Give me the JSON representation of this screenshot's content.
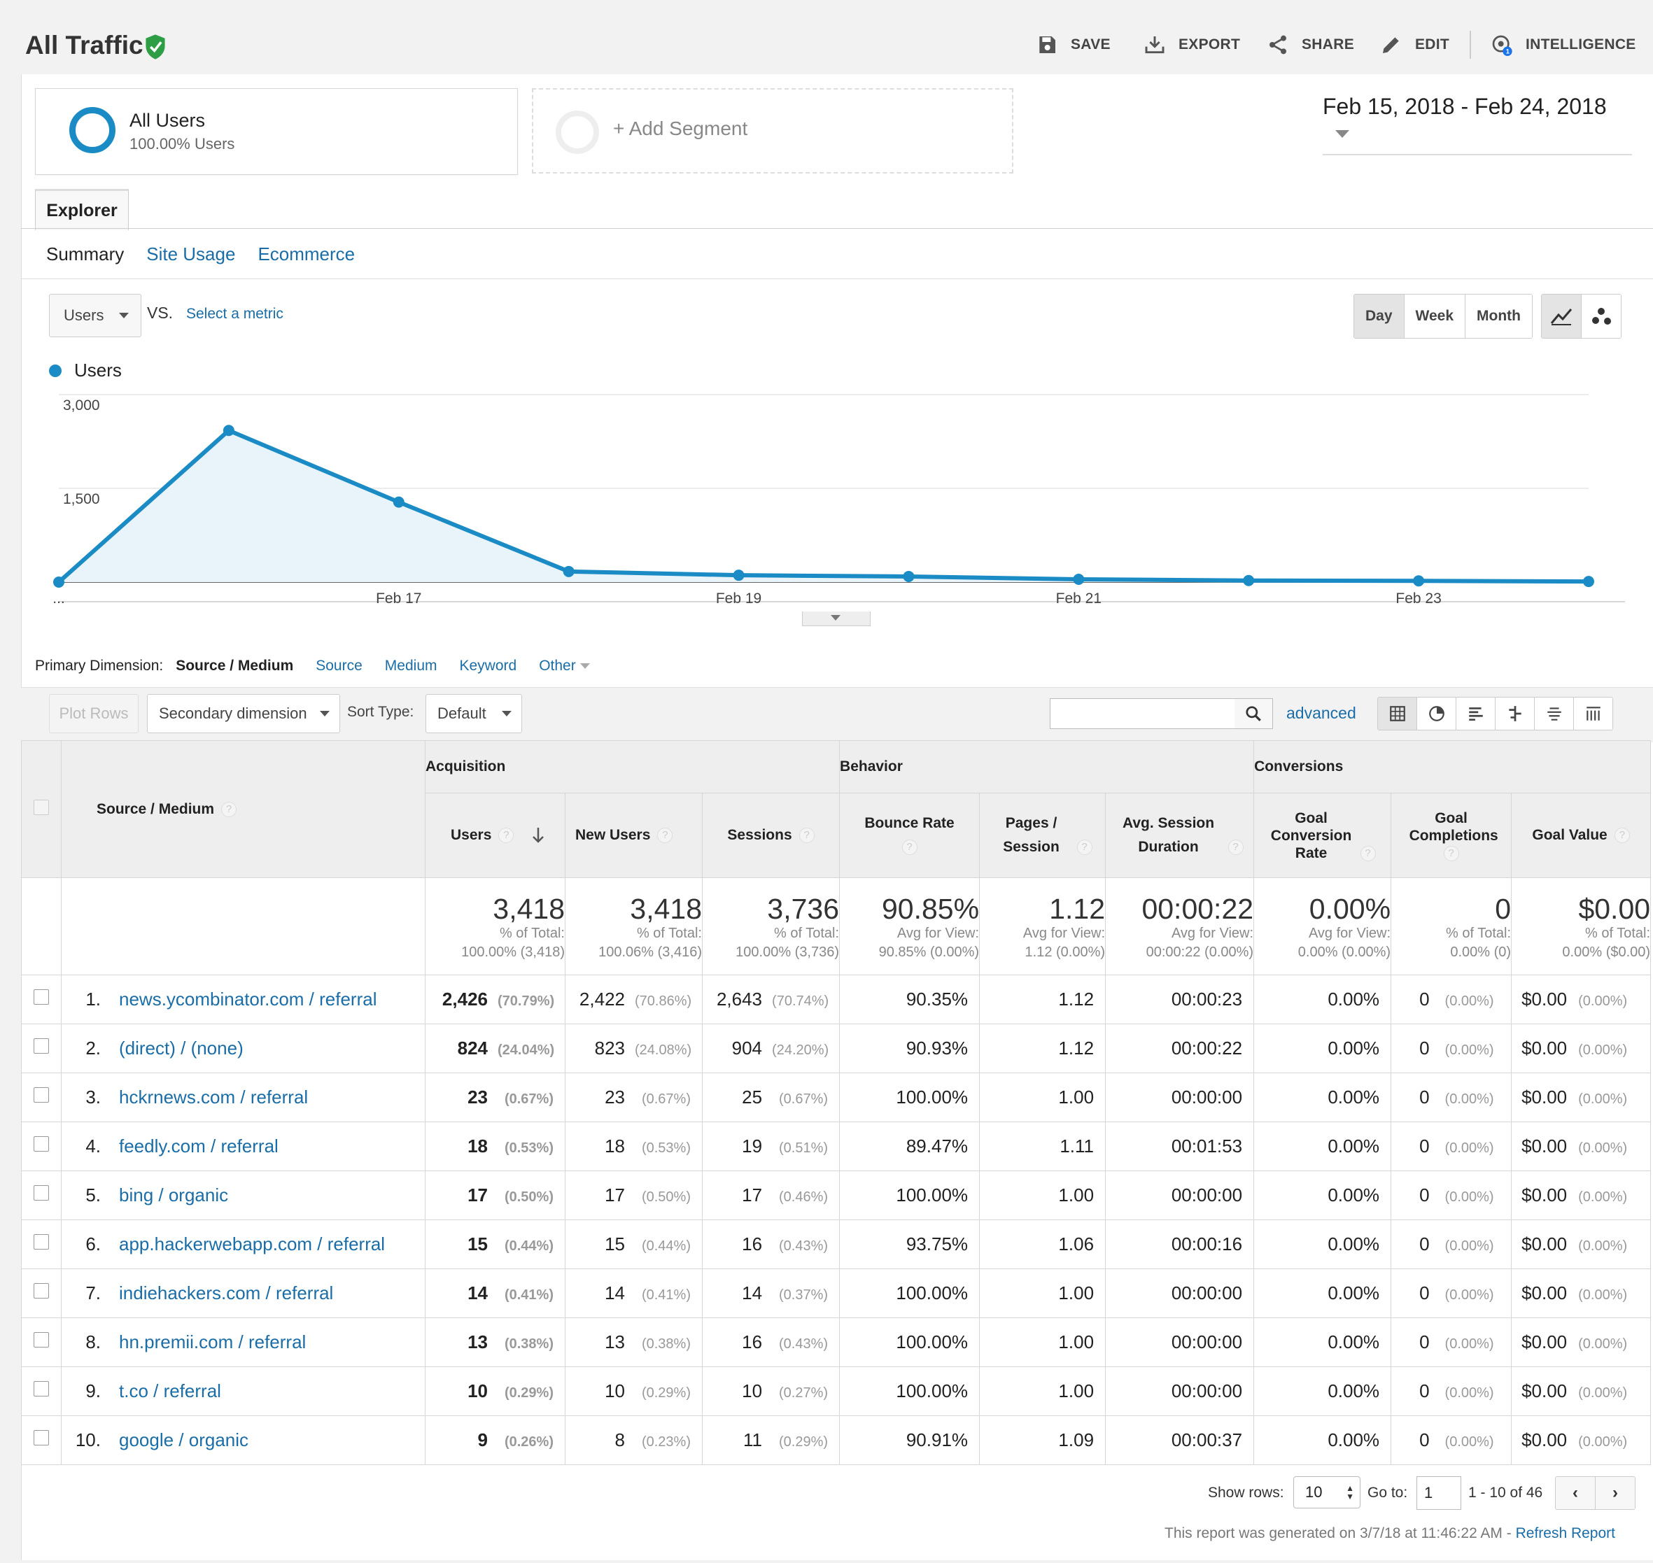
{
  "header": {
    "title": "All Traffic",
    "actions": [
      {
        "label": "SAVE",
        "icon": "save-icon"
      },
      {
        "label": "EXPORT",
        "icon": "export-icon"
      },
      {
        "label": "SHARE",
        "icon": "share-icon"
      },
      {
        "label": "EDIT",
        "icon": "edit-icon"
      },
      {
        "label": "INTELLIGENCE",
        "icon": "intelligence-icon",
        "badge": "1"
      }
    ]
  },
  "segments": {
    "active": {
      "name": "All Users",
      "detail": "100.00% Users"
    },
    "add_label": "+ Add Segment"
  },
  "date_range": "Feb 15, 2018 - Feb 24, 2018",
  "tabs": {
    "main": "Explorer",
    "sub": [
      "Summary",
      "Site Usage",
      "Ecommerce"
    ],
    "active_sub": "Summary"
  },
  "chart_controls": {
    "metric": "Users",
    "vs": "VS.",
    "select_metric": "Select a metric",
    "periods": [
      "Day",
      "Week",
      "Month"
    ],
    "active_period": "Day"
  },
  "chart_data": {
    "type": "area",
    "series": [
      {
        "name": "Users",
        "values": [
          0,
          2426,
          1280,
          170,
          110,
          90,
          45,
          25,
          20,
          10
        ]
      }
    ],
    "x": [
      "Feb 15",
      "Feb 16",
      "Feb 17",
      "Feb 18",
      "Feb 19",
      "Feb 20",
      "Feb 21",
      "Feb 22",
      "Feb 23",
      "Feb 24"
    ],
    "tick_labels": [
      "...",
      "Feb 17",
      "Feb 19",
      "Feb 21",
      "Feb 23"
    ],
    "y_ticks": [
      "3,000",
      "1,500"
    ],
    "ylim": [
      0,
      3000
    ],
    "color": "#1a8bc4",
    "grid": true,
    "legend": "top-left"
  },
  "primary_dimension": {
    "label": "Primary Dimension:",
    "active": "Source / Medium",
    "options": [
      "Source",
      "Medium",
      "Keyword"
    ],
    "other": "Other"
  },
  "table_toolbar": {
    "plot_rows": "Plot Rows",
    "secondary_dimension": "Secondary dimension",
    "sort_type_label": "Sort Type:",
    "sort_type": "Default",
    "advanced": "advanced"
  },
  "table": {
    "groups": [
      "Acquisition",
      "Behavior",
      "Conversions"
    ],
    "dimension_header": "Source / Medium",
    "columns": [
      {
        "label": "Users"
      },
      {
        "label": "New Users"
      },
      {
        "label": "Sessions"
      },
      {
        "label": "Bounce Rate"
      },
      {
        "label": "Pages / Session"
      },
      {
        "label": "Avg. Session Duration"
      },
      {
        "label": "Goal Conversion Rate"
      },
      {
        "label": "Goal Completions"
      },
      {
        "label": "Goal Value"
      }
    ],
    "totals": [
      {
        "value": "3,418",
        "l1": "% of Total:",
        "l2": "100.00% (3,418)"
      },
      {
        "value": "3,418",
        "l1": "% of Total:",
        "l2": "100.06% (3,416)"
      },
      {
        "value": "3,736",
        "l1": "% of Total:",
        "l2": "100.00% (3,736)"
      },
      {
        "value": "90.85%",
        "l1": "Avg for View:",
        "l2": "90.85% (0.00%)"
      },
      {
        "value": "1.12",
        "l1": "Avg for View:",
        "l2": "1.12 (0.00%)"
      },
      {
        "value": "00:00:22",
        "l1": "Avg for View:",
        "l2": "00:00:22 (0.00%)"
      },
      {
        "value": "0.00%",
        "l1": "Avg for View:",
        "l2": "0.00% (0.00%)"
      },
      {
        "value": "0",
        "l1": "% of Total:",
        "l2": "0.00% (0)"
      },
      {
        "value": "$0.00",
        "l1": "% of Total:",
        "l2": "0.00% ($0.00)"
      }
    ],
    "rows": [
      {
        "n": "1.",
        "source": "news.ycombinator.com / referral",
        "users": "2,426",
        "users_pct": "(70.79%)",
        "new_users": "2,422",
        "new_users_pct": "(70.86%)",
        "sessions": "2,643",
        "sessions_pct": "(70.74%)",
        "bounce": "90.35%",
        "pages": "1.12",
        "duration": "00:00:23",
        "conv": "0.00%",
        "goal": "0",
        "goal_pct": "(0.00%)",
        "value": "$0.00",
        "value_pct": "(0.00%)"
      },
      {
        "n": "2.",
        "source": "(direct) / (none)",
        "users": "824",
        "users_pct": "(24.04%)",
        "new_users": "823",
        "new_users_pct": "(24.08%)",
        "sessions": "904",
        "sessions_pct": "(24.20%)",
        "bounce": "90.93%",
        "pages": "1.12",
        "duration": "00:00:22",
        "conv": "0.00%",
        "goal": "0",
        "goal_pct": "(0.00%)",
        "value": "$0.00",
        "value_pct": "(0.00%)"
      },
      {
        "n": "3.",
        "source": "hckrnews.com / referral",
        "users": "23",
        "users_pct": "(0.67%)",
        "new_users": "23",
        "new_users_pct": "(0.67%)",
        "sessions": "25",
        "sessions_pct": "(0.67%)",
        "bounce": "100.00%",
        "pages": "1.00",
        "duration": "00:00:00",
        "conv": "0.00%",
        "goal": "0",
        "goal_pct": "(0.00%)",
        "value": "$0.00",
        "value_pct": "(0.00%)"
      },
      {
        "n": "4.",
        "source": "feedly.com / referral",
        "users": "18",
        "users_pct": "(0.53%)",
        "new_users": "18",
        "new_users_pct": "(0.53%)",
        "sessions": "19",
        "sessions_pct": "(0.51%)",
        "bounce": "89.47%",
        "pages": "1.11",
        "duration": "00:01:53",
        "conv": "0.00%",
        "goal": "0",
        "goal_pct": "(0.00%)",
        "value": "$0.00",
        "value_pct": "(0.00%)"
      },
      {
        "n": "5.",
        "source": "bing / organic",
        "users": "17",
        "users_pct": "(0.50%)",
        "new_users": "17",
        "new_users_pct": "(0.50%)",
        "sessions": "17",
        "sessions_pct": "(0.46%)",
        "bounce": "100.00%",
        "pages": "1.00",
        "duration": "00:00:00",
        "conv": "0.00%",
        "goal": "0",
        "goal_pct": "(0.00%)",
        "value": "$0.00",
        "value_pct": "(0.00%)"
      },
      {
        "n": "6.",
        "source": "app.hackerwebapp.com / referral",
        "users": "15",
        "users_pct": "(0.44%)",
        "new_users": "15",
        "new_users_pct": "(0.44%)",
        "sessions": "16",
        "sessions_pct": "(0.43%)",
        "bounce": "93.75%",
        "pages": "1.06",
        "duration": "00:00:16",
        "conv": "0.00%",
        "goal": "0",
        "goal_pct": "(0.00%)",
        "value": "$0.00",
        "value_pct": "(0.00%)"
      },
      {
        "n": "7.",
        "source": "indiehackers.com / referral",
        "users": "14",
        "users_pct": "(0.41%)",
        "new_users": "14",
        "new_users_pct": "(0.41%)",
        "sessions": "14",
        "sessions_pct": "(0.37%)",
        "bounce": "100.00%",
        "pages": "1.00",
        "duration": "00:00:00",
        "conv": "0.00%",
        "goal": "0",
        "goal_pct": "(0.00%)",
        "value": "$0.00",
        "value_pct": "(0.00%)"
      },
      {
        "n": "8.",
        "source": "hn.premii.com / referral",
        "users": "13",
        "users_pct": "(0.38%)",
        "new_users": "13",
        "new_users_pct": "(0.38%)",
        "sessions": "16",
        "sessions_pct": "(0.43%)",
        "bounce": "100.00%",
        "pages": "1.00",
        "duration": "00:00:00",
        "conv": "0.00%",
        "goal": "0",
        "goal_pct": "(0.00%)",
        "value": "$0.00",
        "value_pct": "(0.00%)"
      },
      {
        "n": "9.",
        "source": "t.co / referral",
        "users": "10",
        "users_pct": "(0.29%)",
        "new_users": "10",
        "new_users_pct": "(0.29%)",
        "sessions": "10",
        "sessions_pct": "(0.27%)",
        "bounce": "100.00%",
        "pages": "1.00",
        "duration": "00:00:00",
        "conv": "0.00%",
        "goal": "0",
        "goal_pct": "(0.00%)",
        "value": "$0.00",
        "value_pct": "(0.00%)"
      },
      {
        "n": "10.",
        "source": "google / organic",
        "users": "9",
        "users_pct": "(0.26%)",
        "new_users": "8",
        "new_users_pct": "(0.23%)",
        "sessions": "11",
        "sessions_pct": "(0.29%)",
        "bounce": "90.91%",
        "pages": "1.09",
        "duration": "00:00:37",
        "conv": "0.00%",
        "goal": "0",
        "goal_pct": "(0.00%)",
        "value": "$0.00",
        "value_pct": "(0.00%)"
      }
    ]
  },
  "pagination": {
    "show_rows_label": "Show rows:",
    "show_rows": "10",
    "goto_label": "Go to:",
    "goto": "1",
    "range": "1 - 10 of 46"
  },
  "footer": {
    "text": "This report was generated on 3/7/18 at 11:46:22 AM - ",
    "refresh": "Refresh Report"
  }
}
